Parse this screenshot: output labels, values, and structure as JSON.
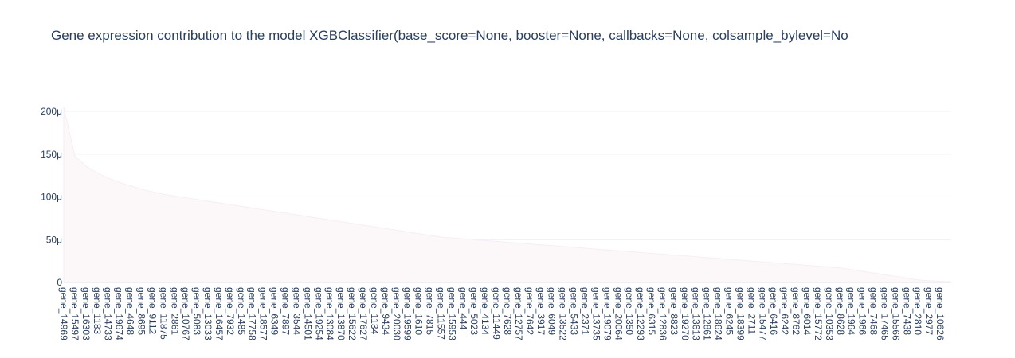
{
  "chart_data": {
    "type": "area",
    "title": "Gene expression contribution to the model XGBClassifier(base_score=None, booster=None, callbacks=None,              colsample_bylevel=No",
    "xlabel": "",
    "ylabel": "",
    "ylim": [
      0,
      0.00022
    ],
    "yticks": [
      {
        "value": 0,
        "label": "0"
      },
      {
        "value": 5e-05,
        "label": "50μ"
      },
      {
        "value": 0.0001,
        "label": "100μ"
      },
      {
        "value": 0.00015,
        "label": "150μ"
      },
      {
        "value": 0.0002,
        "label": "200μ"
      }
    ],
    "grid": true,
    "colors": {
      "fill": "#fcf8fa",
      "line": "#f7eef3",
      "text": "#2a3f5f",
      "grid": "#ebf0f8"
    },
    "categories": [
      "gene_14969",
      "gene_15497",
      "gene_16303",
      "gene_1183",
      "gene_14733",
      "gene_19674",
      "gene_4648",
      "gene_8695",
      "gene_9112",
      "gene_11875",
      "gene_2861",
      "gene_10767",
      "gene_5083",
      "gene_13033",
      "gene_16457",
      "gene_7932",
      "gene_1485",
      "gene_17758",
      "gene_18577",
      "gene_6349",
      "gene_7897",
      "gene_3544",
      "gene_14501",
      "gene_19254",
      "gene_13084",
      "gene_13870",
      "gene_15622",
      "gene_17627",
      "gene_1134",
      "gene_9434",
      "gene_20030",
      "gene_19599",
      "gene_1610",
      "gene_7815",
      "gene_11557",
      "gene_15953",
      "gene_444",
      "gene_5023",
      "gene_4134",
      "gene_11449",
      "gene_7628",
      "gene_12757",
      "gene_7642",
      "gene_3917",
      "gene_6049",
      "gene_13522",
      "gene_5433",
      "gene_2371",
      "gene_13735",
      "gene_19079",
      "gene_20064",
      "gene_1350",
      "gene_12293",
      "gene_6315",
      "gene_12836",
      "gene_8823",
      "gene_19270",
      "gene_13613",
      "gene_12861",
      "gene_18624",
      "gene_6245",
      "gene_18399",
      "gene_2711",
      "gene_15477",
      "gene_6416",
      "gene_6242",
      "gene_8762",
      "gene_6014",
      "gene_15772",
      "gene_10353",
      "gene_8628",
      "gene_1964",
      "gene_1966",
      "gene_7468",
      "gene_17465",
      "gene_15566",
      "gene_7438",
      "gene_2810",
      "gene_2977",
      "gene_10626"
    ],
    "values": [
      0.000205,
      0.000148,
      0.000136,
      0.000128,
      0.000122,
      0.000117,
      0.000113,
      0.000109,
      0.000106,
      0.000103,
      0.000101,
      9.9e-05,
      9.7e-05,
      9.5e-05,
      9.3e-05,
      9.1e-05,
      8.9e-05,
      8.7e-05,
      8.5e-05,
      8.3e-05,
      8.1e-05,
      7.9e-05,
      7.7e-05,
      7.5e-05,
      7.3e-05,
      7.1e-05,
      6.9e-05,
      6.7e-05,
      6.5e-05,
      6.3e-05,
      6.1e-05,
      5.9e-05,
      5.7e-05,
      5.5e-05,
      5.3e-05,
      5.2e-05,
      5.1e-05,
      5e-05,
      4.9e-05,
      4.8e-05,
      4.7e-05,
      4.6e-05,
      4.5e-05,
      4.4e-05,
      4.3e-05,
      4.2e-05,
      4.1e-05,
      4e-05,
      3.9e-05,
      3.8e-05,
      3.7e-05,
      3.6e-05,
      3.5e-05,
      3.4e-05,
      3.3e-05,
      3.2e-05,
      3.1e-05,
      3e-05,
      2.9e-05,
      2.8e-05,
      2.7e-05,
      2.6e-05,
      2.5e-05,
      2.4e-05,
      2.3e-05,
      2.2e-05,
      2.1e-05,
      2e-05,
      1.9e-05,
      1.8e-05,
      1.7e-05,
      1.5e-05,
      1.3e-05,
      1.1e-05,
      9e-06,
      7e-06,
      5e-06,
      3e-06,
      2e-06,
      1e-06
    ]
  }
}
